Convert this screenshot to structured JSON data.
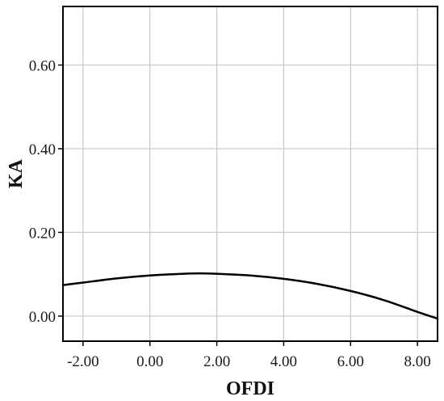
{
  "chart_data": {
    "type": "line",
    "title": "",
    "xlabel": "OFDI",
    "ylabel": "KA",
    "xlim": [
      -2.6,
      8.6
    ],
    "ylim": [
      -0.06,
      0.74
    ],
    "grid": true,
    "x_ticks": [
      -2,
      0,
      2,
      4,
      6,
      8
    ],
    "x_tick_labels": [
      "-2.00",
      "0.00",
      "2.00",
      "4.00",
      "6.00",
      "8.00"
    ],
    "y_ticks": [
      0.0,
      0.2,
      0.4,
      0.6
    ],
    "y_tick_labels": [
      "0.00",
      "0.20",
      "0.40",
      "0.60"
    ],
    "series": [
      {
        "color": "#000000",
        "x": [
          -2.6,
          -2.0,
          -1.0,
          0.0,
          1.0,
          1.5,
          2.0,
          3.0,
          4.0,
          5.0,
          6.0,
          7.0,
          8.0,
          8.6
        ],
        "y": [
          0.074,
          0.08,
          0.09,
          0.097,
          0.101,
          0.102,
          0.101,
          0.097,
          0.089,
          0.077,
          0.06,
          0.038,
          0.01,
          -0.006
        ]
      }
    ]
  }
}
